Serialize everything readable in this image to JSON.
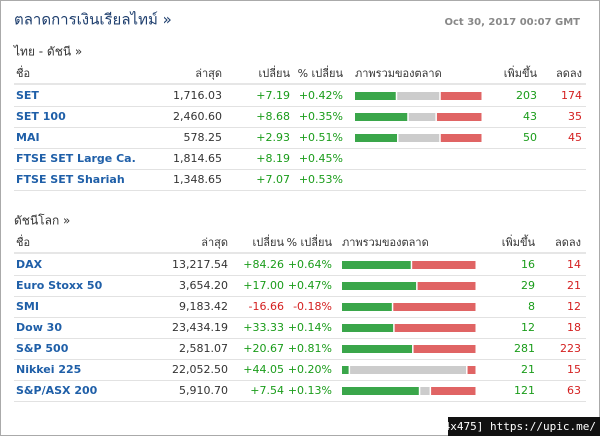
{
  "header": {
    "title": "ตลาดการเงินเรียลไทม์ »",
    "date": "Oct 30, 2017 00:07 GMT"
  },
  "sections": [
    {
      "title": "ไทย - ดัชนี »",
      "columns": [
        "ชื่อ",
        "ล่าสุด",
        "เปลี่ยน",
        "% เปลี่ยน",
        "ภาพรวมของตลาด",
        "เพิ่มขึ้น",
        "ลดลง"
      ],
      "rows": [
        {
          "name": "SET",
          "last": "1,716.03",
          "change": "+7.19",
          "pct": "+0.42%",
          "bar": [
            33,
            34,
            33
          ],
          "up": 203,
          "down": 174
        },
        {
          "name": "SET 100",
          "last": "2,460.60",
          "change": "+8.68",
          "pct": "+0.35%",
          "bar": [
            42,
            22,
            36
          ],
          "up": 43,
          "down": 35
        },
        {
          "name": "MAI",
          "last": "578.25",
          "change": "+2.93",
          "pct": "+0.51%",
          "bar": [
            34,
            33,
            33
          ],
          "up": 50,
          "down": 45
        },
        {
          "name": "FTSE SET Large Ca.",
          "last": "1,814.65",
          "change": "+8.19",
          "pct": "+0.45%"
        },
        {
          "name": "FTSE SET Shariah",
          "last": "1,348.65",
          "change": "+7.07",
          "pct": "+0.53%"
        }
      ]
    },
    {
      "title": "ดัชนีโลก »",
      "columns": [
        "ชื่อ",
        "ล่าสุด",
        "เปลี่ยน",
        "% เปลี่ยน",
        "ภาพรวมของตลาด",
        "เพิ่มขึ้น",
        "ลดลง"
      ],
      "rows": [
        {
          "name": "DAX",
          "last": "13,217.54",
          "change": "+84.26",
          "pct": "+0.64%",
          "bar": [
            52,
            0,
            48
          ],
          "up": 16,
          "down": 14
        },
        {
          "name": "Euro Stoxx 50",
          "last": "3,654.20",
          "change": "+17.00",
          "pct": "+0.47%",
          "bar": [
            56,
            0,
            44
          ],
          "up": 29,
          "down": 21
        },
        {
          "name": "SMI",
          "last": "9,183.42",
          "change": "-16.66",
          "pct": "-0.18%",
          "bar": [
            38,
            0,
            62
          ],
          "up": 8,
          "down": 12
        },
        {
          "name": "Dow 30",
          "last": "23,434.19",
          "change": "+33.33",
          "pct": "+0.14%",
          "bar": [
            39,
            0,
            61
          ],
          "up": 12,
          "down": 18
        },
        {
          "name": "S&P 500",
          "last": "2,581.07",
          "change": "+20.67",
          "pct": "+0.81%",
          "bar": [
            53,
            0,
            47
          ],
          "up": 281,
          "down": 223
        },
        {
          "name": "Nikkei 225",
          "last": "22,052.50",
          "change": "+44.05",
          "pct": "+0.20%",
          "bar": [
            6,
            87,
            7
          ],
          "up": 21,
          "down": 15
        },
        {
          "name": "S&P/ASX 200",
          "last": "5,910.70",
          "change": "+7.54",
          "pct": "+0.13%",
          "bar": [
            58,
            8,
            34
          ],
          "up": 121,
          "down": 63
        }
      ]
    }
  ],
  "watermark": "[684x475] https://upic.me/"
}
